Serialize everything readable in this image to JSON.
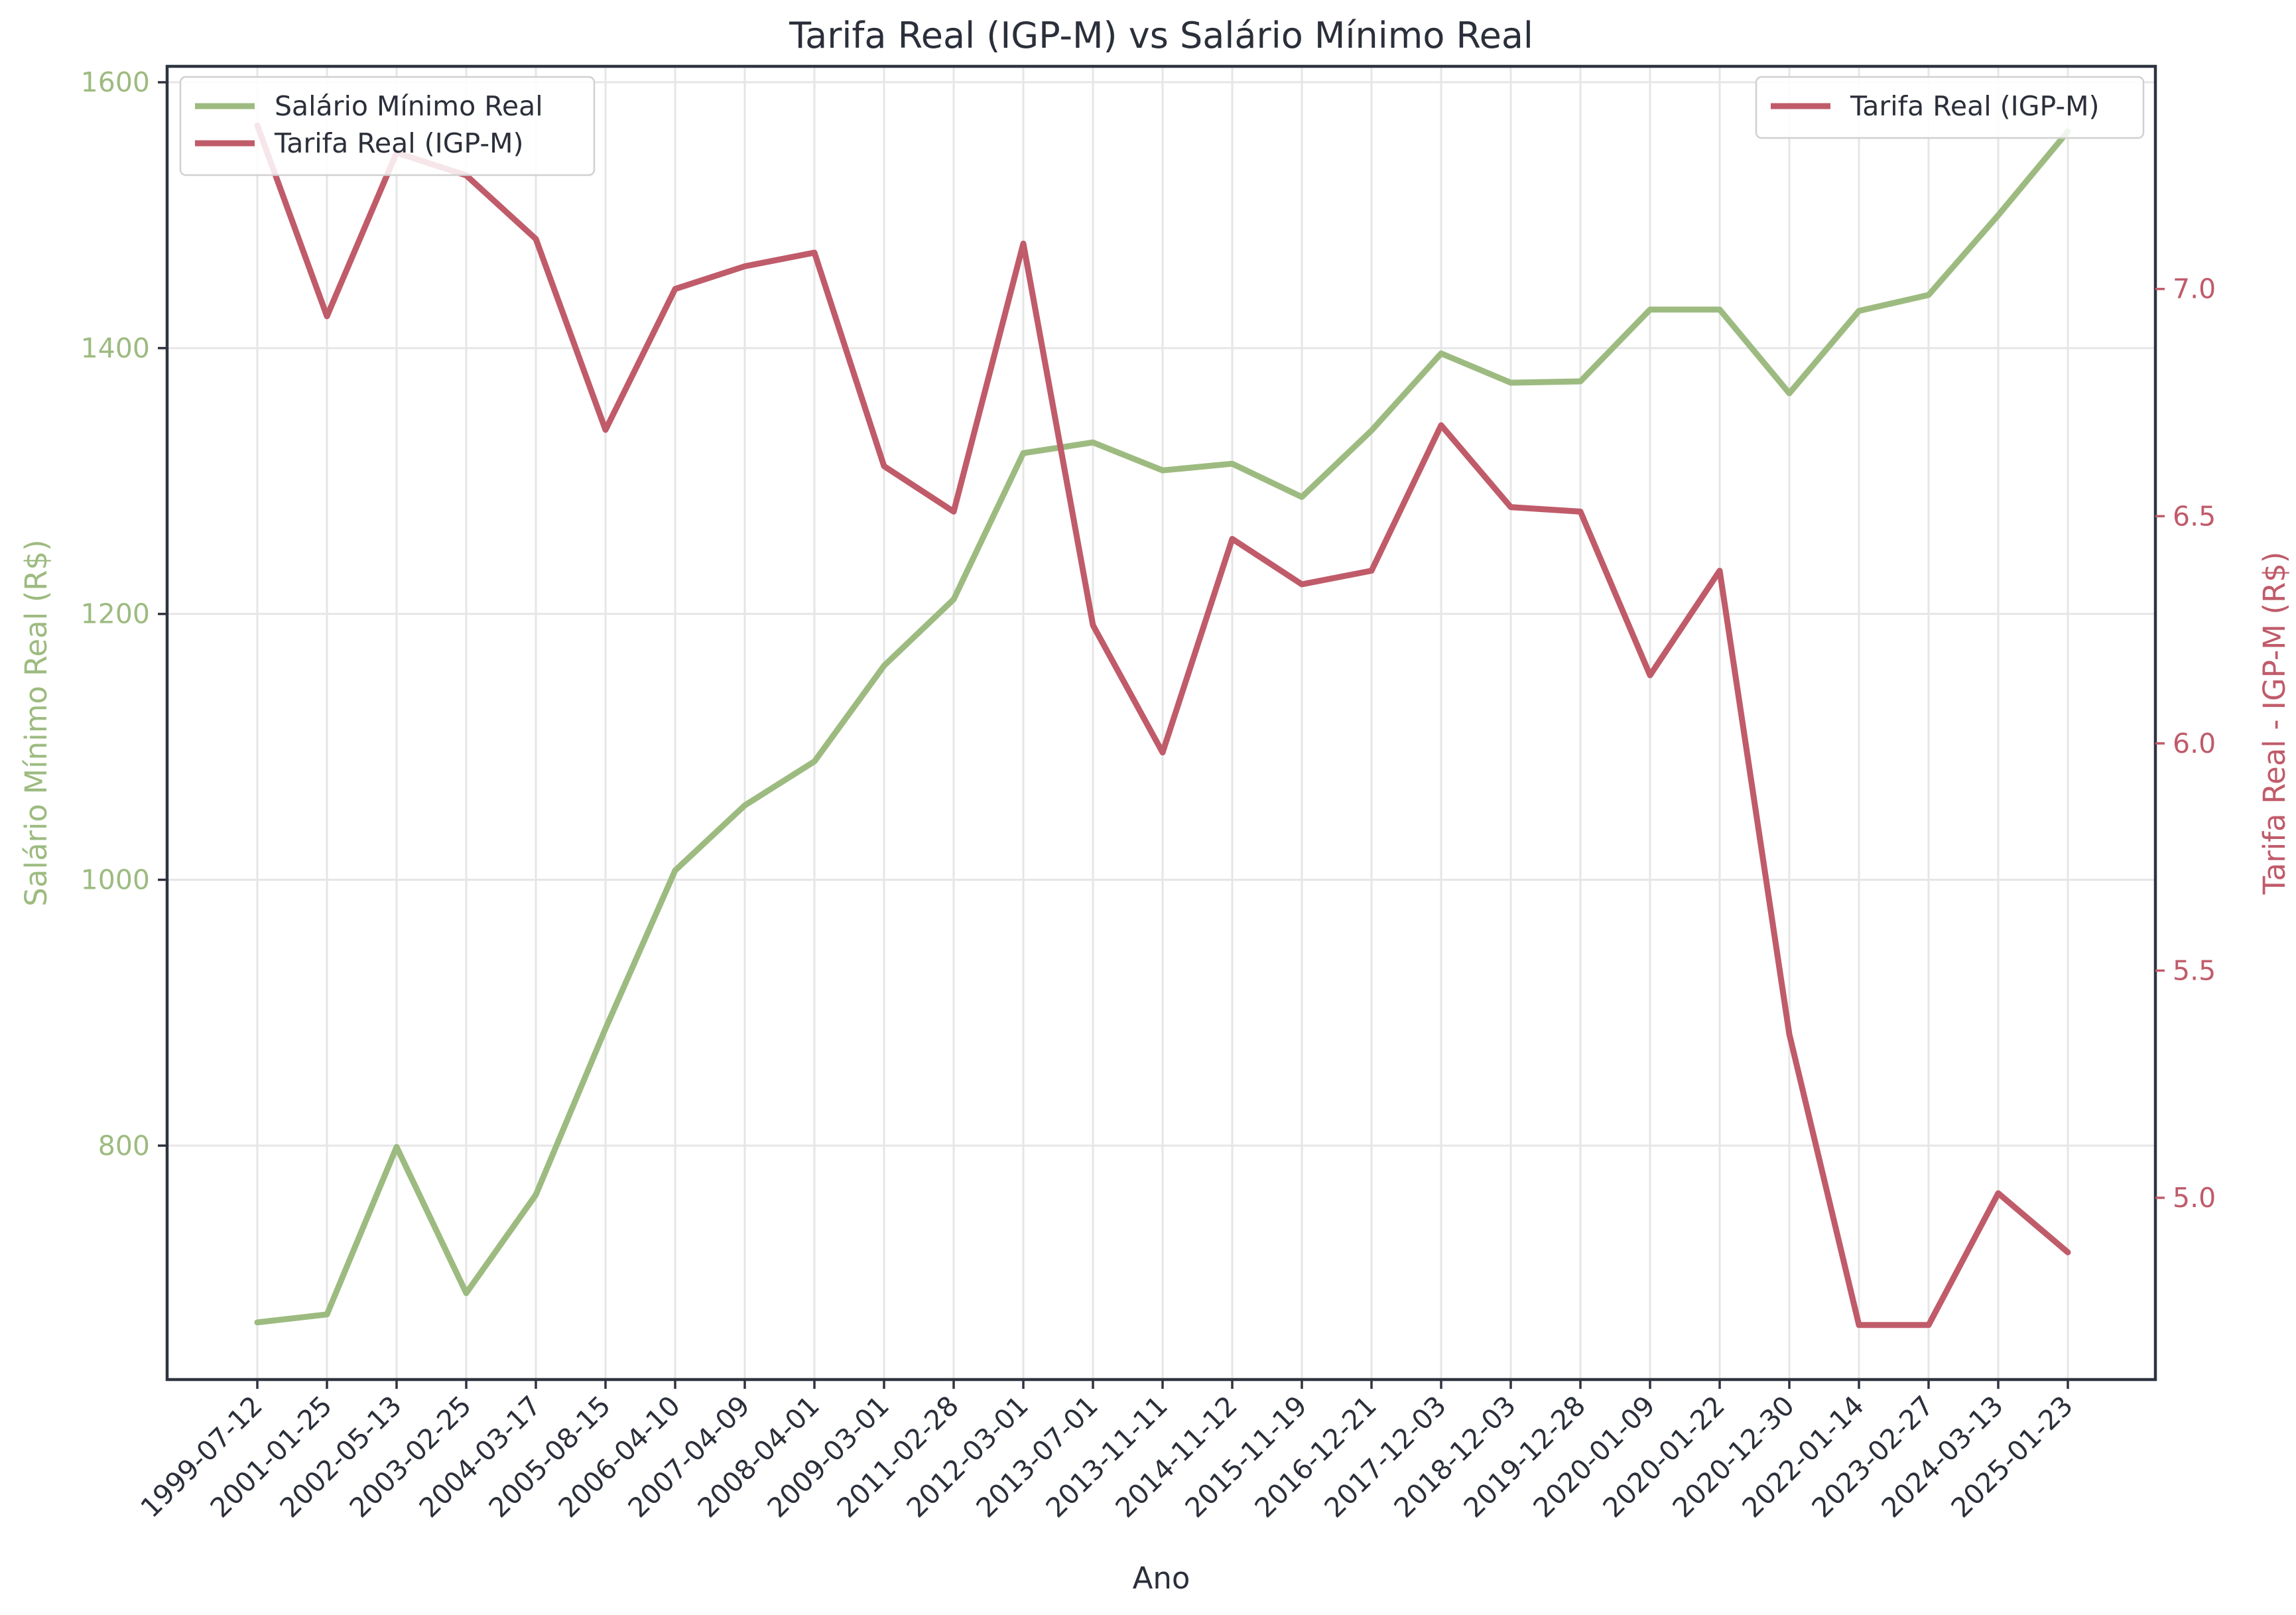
{
  "colors": {
    "salario": "#9dbb80",
    "tarifa": "#c05b6a",
    "text": "#2b2f3a",
    "frame": "#2e3440"
  },
  "chart_data": {
    "type": "line",
    "title": "Tarifa Real (IGP-M) vs Salário Mínimo Real",
    "xlabel": "Ano",
    "ylabel": "Salário Mínimo Real (R$)",
    "y2label": "Tarifa Real - IGP-M (R$)",
    "ylim": [
      624,
      1612
    ],
    "y2lim": [
      4.6,
      7.49
    ],
    "yticks": [
      800,
      1000,
      1200,
      1400,
      1600
    ],
    "y2ticks": [
      5.0,
      5.5,
      6.0,
      6.5,
      7.0
    ],
    "grid": true,
    "categories": [
      "1999-07-12",
      "2001-01-25",
      "2002-05-13",
      "2003-02-25",
      "2004-03-17",
      "2005-08-15",
      "2006-04-10",
      "2007-04-09",
      "2008-04-01",
      "2009-03-01",
      "2011-02-28",
      "2012-03-01",
      "2013-07-01",
      "2013-11-11",
      "2014-11-12",
      "2015-11-19",
      "2016-12-21",
      "2017-12-03",
      "2018-12-03",
      "2019-12-28",
      "2020-01-09",
      "2020-01-22",
      "2020-12-30",
      "2022-01-14",
      "2023-02-27",
      "2024-03-13",
      "2025-01-23"
    ],
    "series": [
      {
        "name": "Salário Mínimo Real",
        "axis": "left",
        "values": [
          667,
          673,
          799,
          689,
          763,
          888,
          1007,
          1056,
          1089,
          1161,
          1211,
          1321,
          1329,
          1308,
          1313,
          1288,
          1338,
          1396,
          1374,
          1375,
          1429,
          1429,
          1366,
          1428,
          1440,
          1500,
          1563
        ]
      },
      {
        "name": "Tarifa Real (IGP-M)",
        "axis": "right",
        "values": [
          7.36,
          6.94,
          7.3,
          7.25,
          7.11,
          6.69,
          7.0,
          7.05,
          7.08,
          6.61,
          6.51,
          7.1,
          6.26,
          5.98,
          6.45,
          6.35,
          6.38,
          6.7,
          6.52,
          6.51,
          6.15,
          6.38,
          5.36,
          4.72,
          4.72,
          5.01,
          4.88
        ]
      }
    ],
    "legends": [
      {
        "location": "upper left",
        "entries": [
          "Salário Mínimo Real",
          "Tarifa Real (IGP-M)"
        ]
      },
      {
        "location": "upper right",
        "entries": [
          "Tarifa Real (IGP-M)"
        ]
      }
    ]
  }
}
